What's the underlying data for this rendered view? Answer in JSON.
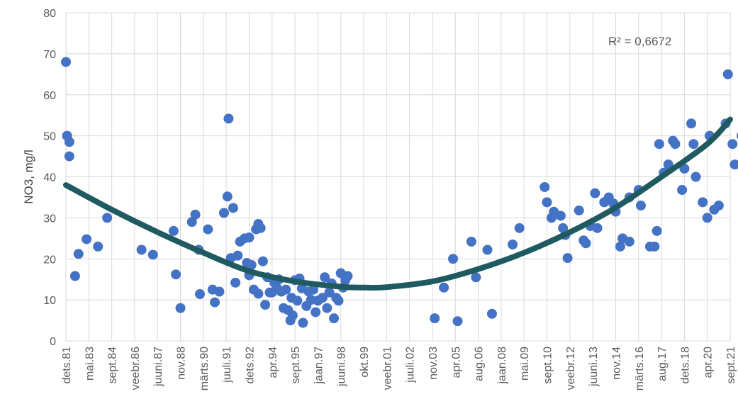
{
  "chart_data": {
    "type": "scatter",
    "ylabel": "NO3, mg/l",
    "xlabel": "",
    "ylim": [
      0,
      80
    ],
    "yticks": [
      0,
      10,
      20,
      30,
      40,
      50,
      60,
      70,
      80
    ],
    "grid": "vertical-and-horizontal",
    "annotation": "R² = 0,6672",
    "point_color": "#4472c4",
    "trend_color": "#1f5a60",
    "x_categories": [
      "dets.81",
      "mai.83",
      "sept.84",
      "veebr.86",
      "juuni.87",
      "nov.88",
      "märts.90",
      "juuli.91",
      "dets.92",
      "apr.94",
      "sept.95",
      "jaan.97",
      "juuni.98",
      "okt.99",
      "veebr.01",
      "juuli.02",
      "nov.03",
      "apr.05",
      "aug.06",
      "jaan.08",
      "mai.09",
      "sept.10",
      "veebr.12",
      "juuni.13",
      "nov.14",
      "märts.16",
      "aug.17",
      "dets.18",
      "apr.20",
      "sept.21"
    ],
    "trendline": {
      "type": "polynomial-2",
      "points": [
        [
          0,
          38
        ],
        [
          2,
          32
        ],
        [
          4,
          26.5
        ],
        [
          6,
          21.5
        ],
        [
          8,
          17
        ],
        [
          10,
          14.5
        ],
        [
          12,
          13.2
        ],
        [
          13,
          13
        ],
        [
          14,
          13.1
        ],
        [
          16,
          14.5
        ],
        [
          18,
          17.5
        ],
        [
          20,
          21.5
        ],
        [
          22,
          26.5
        ],
        [
          24,
          32.5
        ],
        [
          26,
          40
        ],
        [
          28,
          48
        ],
        [
          29,
          54
        ]
      ]
    },
    "points": [
      [
        0,
        68
      ],
      [
        0.05,
        50
      ],
      [
        0.15,
        48.5
      ],
      [
        0.15,
        45
      ],
      [
        0.4,
        15.8
      ],
      [
        0.55,
        21.2
      ],
      [
        0.9,
        24.8
      ],
      [
        1.4,
        23
      ],
      [
        1.8,
        30
      ],
      [
        3.3,
        22.2
      ],
      [
        3.8,
        21
      ],
      [
        4.7,
        26.8
      ],
      [
        4.8,
        16.2
      ],
      [
        5,
        8
      ],
      [
        5.5,
        29
      ],
      [
        5.65,
        30.8
      ],
      [
        5.8,
        22.2
      ],
      [
        5.85,
        11.4
      ],
      [
        6.2,
        27.2
      ],
      [
        6.4,
        12.5
      ],
      [
        6.5,
        9.4
      ],
      [
        6.7,
        12
      ],
      [
        6.9,
        31.2
      ],
      [
        7.05,
        35.2
      ],
      [
        7.1,
        54.2
      ],
      [
        7.2,
        20.2
      ],
      [
        7.3,
        32.4
      ],
      [
        7.4,
        14.2
      ],
      [
        7.5,
        20.8
      ],
      [
        7.6,
        24.2
      ],
      [
        7.8,
        25
      ],
      [
        7.9,
        19
      ],
      [
        8,
        25.2
      ],
      [
        8,
        16
      ],
      [
        8.1,
        18.5
      ],
      [
        8.2,
        12.5
      ],
      [
        8.3,
        27.2
      ],
      [
        8.4,
        28.5
      ],
      [
        8.5,
        27.5
      ],
      [
        8.4,
        11.5
      ],
      [
        8.6,
        19.4
      ],
      [
        8.7,
        8.8
      ],
      [
        8.8,
        15.5
      ],
      [
        8.9,
        11.8
      ],
      [
        9,
        11.8
      ],
      [
        9.1,
        14.2
      ],
      [
        9.2,
        13
      ],
      [
        9.3,
        15
      ],
      [
        9.4,
        12
      ],
      [
        9.5,
        8
      ],
      [
        9.6,
        12.5
      ],
      [
        9.7,
        7.5
      ],
      [
        9.8,
        5
      ],
      [
        9.85,
        10.5
      ],
      [
        9.9,
        6.2
      ],
      [
        10,
        14.8
      ],
      [
        10.1,
        9.8
      ],
      [
        10.2,
        15.2
      ],
      [
        10.3,
        12.8
      ],
      [
        10.35,
        4.4
      ],
      [
        10.5,
        8.5
      ],
      [
        10.6,
        12
      ],
      [
        10.7,
        10
      ],
      [
        10.8,
        12.5
      ],
      [
        10.9,
        7
      ],
      [
        11,
        9.8
      ],
      [
        11.2,
        10.5
      ],
      [
        11.3,
        15.5
      ],
      [
        11.4,
        8
      ],
      [
        11.5,
        11.8
      ],
      [
        11.6,
        14
      ],
      [
        11.7,
        5.5
      ],
      [
        11.8,
        10.5
      ],
      [
        11.9,
        9.8
      ],
      [
        12,
        16.5
      ],
      [
        12.1,
        13
      ],
      [
        12.2,
        14.8
      ],
      [
        12.3,
        15.8
      ],
      [
        16.1,
        5.5
      ],
      [
        16.5,
        13
      ],
      [
        16.9,
        20
      ],
      [
        17.1,
        4.8
      ],
      [
        17.7,
        24.2
      ],
      [
        17.9,
        15.5
      ],
      [
        18.4,
        22.2
      ],
      [
        18.6,
        6.6
      ],
      [
        19.5,
        23.5
      ],
      [
        19.8,
        27.5
      ],
      [
        20.9,
        37.5
      ],
      [
        21,
        33.8
      ],
      [
        21.2,
        30
      ],
      [
        21.3,
        31.5
      ],
      [
        21.6,
        30.5
      ],
      [
        21.7,
        27.5
      ],
      [
        21.8,
        25.8
      ],
      [
        21.9,
        20.2
      ],
      [
        22.4,
        31.8
      ],
      [
        22.6,
        24.5
      ],
      [
        22.7,
        23.8
      ],
      [
        22.9,
        28
      ],
      [
        23.1,
        36
      ],
      [
        23.2,
        27.5
      ],
      [
        23.5,
        33.8
      ],
      [
        23.7,
        35
      ],
      [
        23.9,
        33.5
      ],
      [
        24,
        31.5
      ],
      [
        24.2,
        23
      ],
      [
        24.3,
        25
      ],
      [
        24.6,
        24.2
      ],
      [
        24.6,
        35
      ],
      [
        25,
        36.8
      ],
      [
        25.1,
        33
      ],
      [
        25.5,
        23
      ],
      [
        25.7,
        23
      ],
      [
        25.8,
        26.8
      ],
      [
        25.9,
        48
      ],
      [
        26.1,
        41
      ],
      [
        26.3,
        43
      ],
      [
        26.5,
        48.8
      ],
      [
        26.6,
        48
      ],
      [
        26.9,
        36.8
      ],
      [
        27,
        42
      ],
      [
        27.3,
        53
      ],
      [
        27.4,
        48
      ],
      [
        27.5,
        40
      ],
      [
        27.8,
        33.8
      ],
      [
        28,
        30
      ],
      [
        28.1,
        50
      ],
      [
        28.3,
        32
      ],
      [
        28.5,
        33
      ],
      [
        28.8,
        53
      ],
      [
        28.9,
        65
      ],
      [
        29.1,
        48
      ],
      [
        29.2,
        43
      ],
      [
        29.5,
        50
      ],
      [
        29.6,
        56
      ],
      [
        29.9,
        44
      ],
      [
        30,
        45
      ]
    ]
  }
}
